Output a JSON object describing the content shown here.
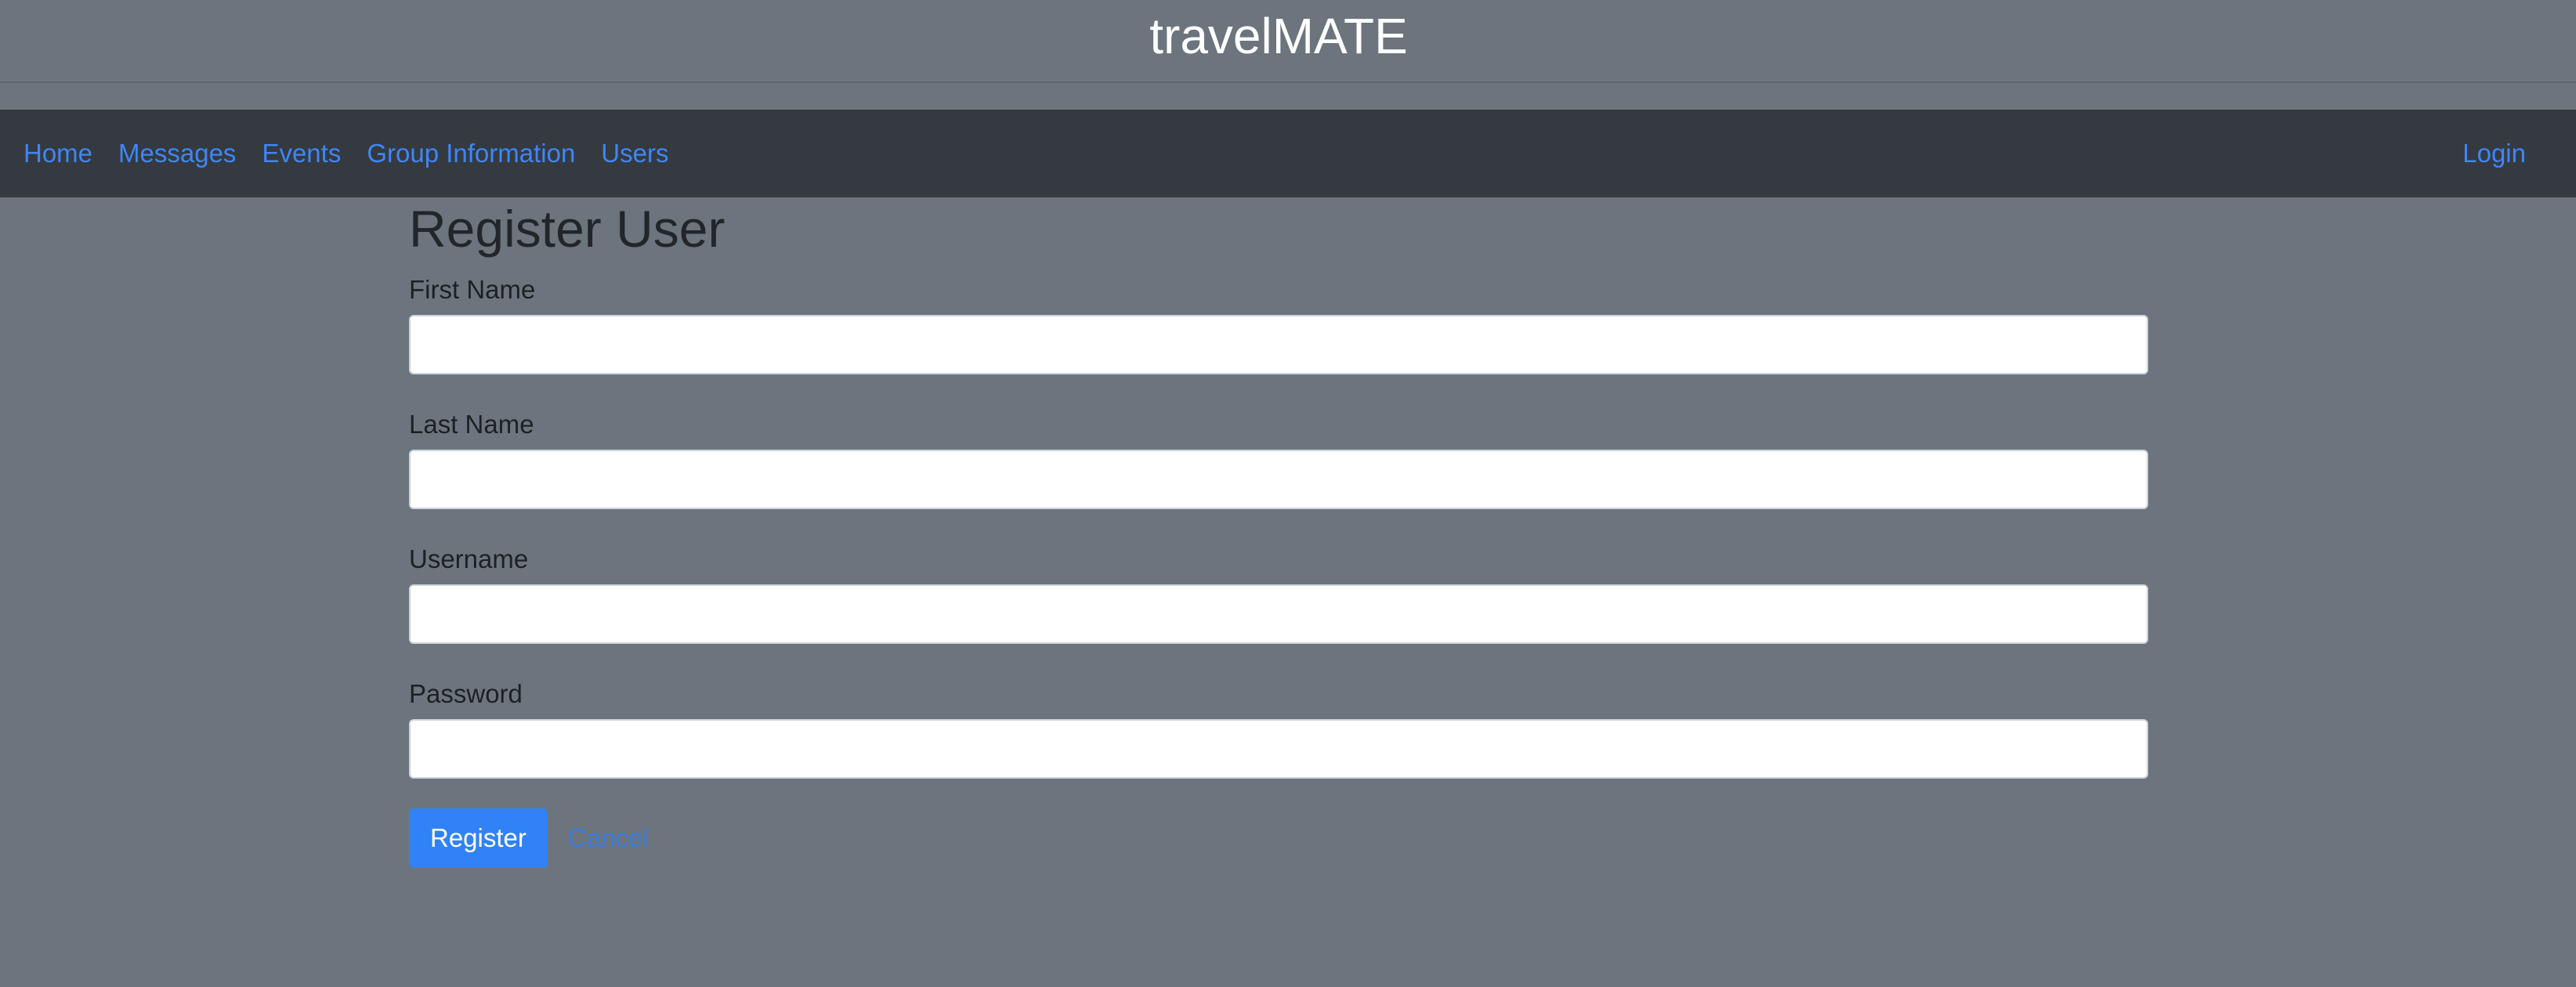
{
  "header": {
    "title": "travelMATE"
  },
  "nav": {
    "links": [
      {
        "label": "Home"
      },
      {
        "label": "Messages"
      },
      {
        "label": "Events"
      },
      {
        "label": "Group Information"
      },
      {
        "label": "Users"
      }
    ],
    "login_label": "Login"
  },
  "form": {
    "heading": "Register User",
    "fields": [
      {
        "label": "First Name",
        "value": ""
      },
      {
        "label": "Last Name",
        "value": ""
      },
      {
        "label": "Username",
        "value": ""
      },
      {
        "label": "Password",
        "value": ""
      }
    ],
    "register_label": "Register",
    "cancel_label": "Cancel"
  },
  "colors": {
    "page_background": "#6c757d",
    "navbar_background": "#343a40",
    "link": "#3f86f6",
    "primary_button": "#3182f6"
  }
}
